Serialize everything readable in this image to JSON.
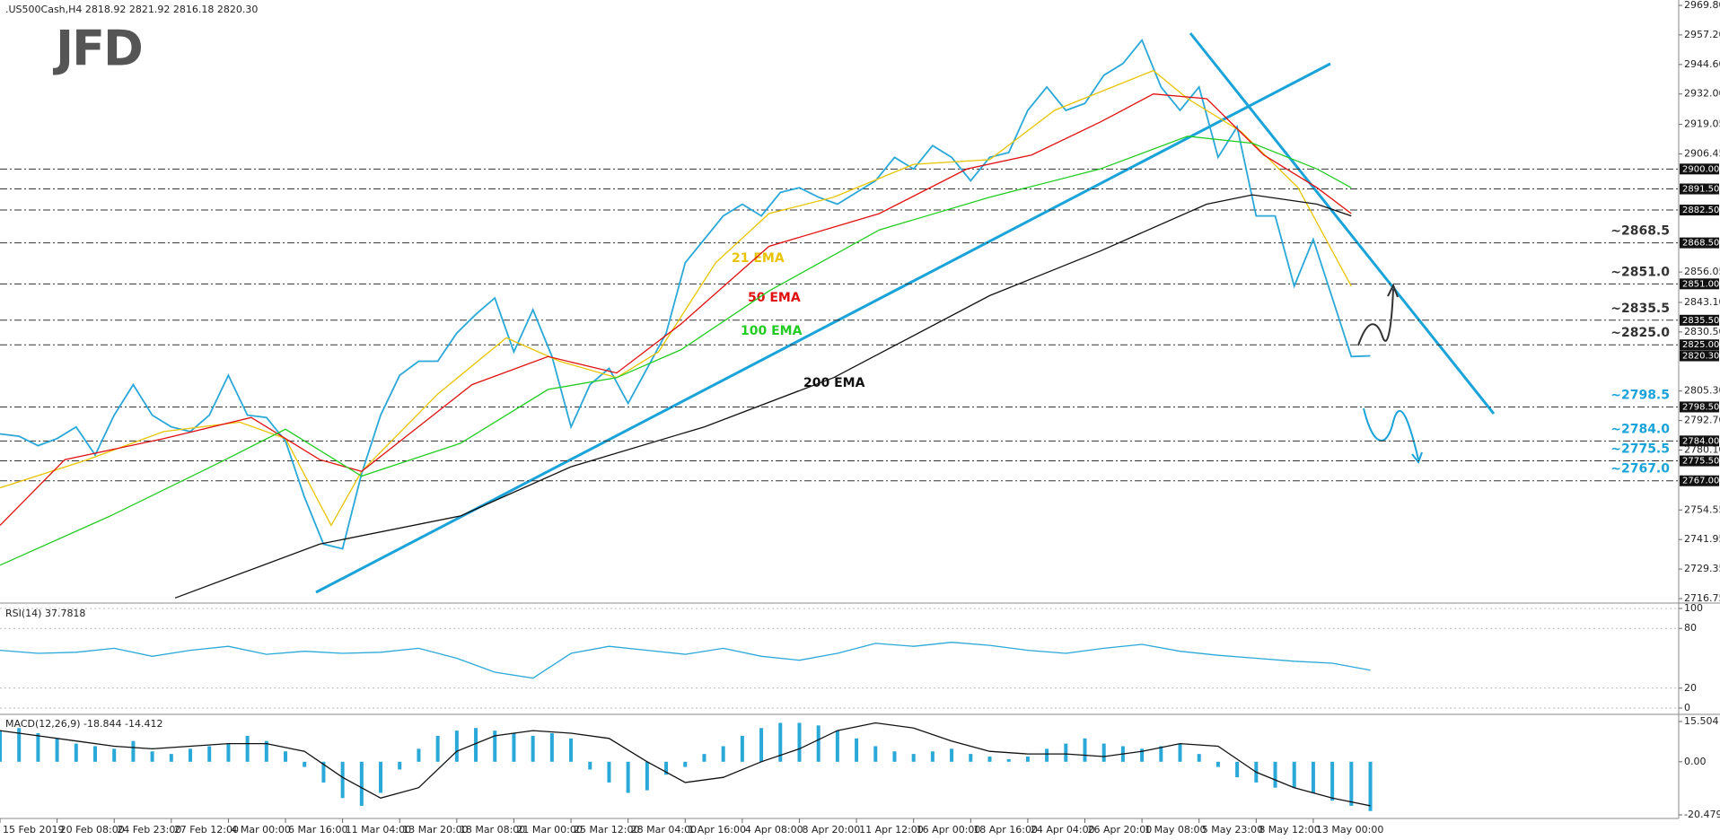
{
  "logo": "JFD",
  "chart_data": [
    {
      "type": "line",
      "title": ".US500Cash,H4  2818.92 2821.92 2816.18 2820.30",
      "xlim": [
        0,
        441
      ],
      "ylim": [
        2716.75,
        2969.8
      ],
      "yticks": [
        {
          "value": 2969.8,
          "label": "2969.80"
        },
        {
          "value": 2957.2,
          "label": "2957.20"
        },
        {
          "value": 2944.6,
          "label": "2944.60"
        },
        {
          "value": 2932,
          "label": "2932.00"
        },
        {
          "value": 2919.05,
          "label": "2919.05"
        },
        {
          "value": 2906.45,
          "label": "2906.45"
        },
        {
          "value": 2856.05,
          "label": "2856.05"
        },
        {
          "value": 2843.1,
          "label": "2843.10"
        },
        {
          "value": 2830.5,
          "label": "2830.50"
        },
        {
          "value": 2805.3,
          "label": "2805.30"
        },
        {
          "value": 2792.7,
          "label": "2792.70"
        },
        {
          "value": 2780.1,
          "label": "2780.10"
        },
        {
          "value": 2754.55,
          "label": "2754.55"
        },
        {
          "value": 2741.95,
          "label": "2741.95"
        },
        {
          "value": 2729.35,
          "label": "2729.35"
        },
        {
          "value": 2716.75,
          "label": "2716.75"
        }
      ],
      "levels": [
        {
          "value": 2900,
          "label": "2900.00"
        },
        {
          "value": 2891.5,
          "label": "2891.50"
        },
        {
          "value": 2882.5,
          "label": "2882.50"
        },
        {
          "value": 2868.5,
          "label": "2868.50",
          "annotation": "~2868.5",
          "annotation_color": "#333333"
        },
        {
          "value": 2851,
          "label": "2851.00",
          "annotation": "~2851.0",
          "annotation_color": "#333333"
        },
        {
          "value": 2835.5,
          "label": "2835.50",
          "annotation": "~2835.5",
          "annotation_color": "#333333"
        },
        {
          "value": 2825,
          "label": "2825.00",
          "annotation": "~2825.0",
          "annotation_color": "#333333"
        },
        {
          "value": 2798.5,
          "label": "2798.50",
          "annotation": "~2798.5",
          "annotation_color": "#1aa3d9"
        },
        {
          "value": 2784,
          "label": "2784.00",
          "annotation": "~2784.0",
          "annotation_color": "#1aa3d9"
        },
        {
          "value": 2775.5,
          "label": "2775.50",
          "annotation": "~2775.5",
          "annotation_color": "#1aa3d9"
        },
        {
          "value": 2767,
          "label": "2767.00",
          "annotation": "~2767.0",
          "annotation_color": "#1aa3d9"
        }
      ],
      "last_price": {
        "value": 2820.3,
        "label": "2820.30"
      },
      "series": [
        {
          "color": "#2aa8d8",
          "x": [
            0,
            5,
            10,
            15,
            20,
            25,
            30,
            35,
            40,
            45,
            50,
            55,
            60,
            65,
            70,
            75,
            80,
            85,
            90,
            95,
            100,
            105,
            110,
            115,
            120,
            125,
            130,
            135,
            140,
            145,
            150,
            155,
            160,
            165,
            170,
            175,
            180,
            185,
            190,
            195,
            200,
            205,
            210,
            215,
            220,
            225,
            230,
            235,
            240,
            245,
            250,
            255,
            260,
            265,
            270,
            275,
            280,
            285,
            290,
            295,
            300,
            305,
            310,
            315,
            320,
            325,
            330,
            335,
            340,
            345,
            350,
            355,
            360
          ],
          "values": [
            2787,
            2786,
            2782,
            2785,
            2790,
            2778,
            2795,
            2808,
            2795,
            2790,
            2788,
            2795,
            2812,
            2795,
            2794,
            2784,
            2760,
            2740,
            2738,
            2770,
            2795,
            2812,
            2818,
            2818,
            2830,
            2838,
            2845,
            2822,
            2840,
            2820,
            2790,
            2808,
            2815,
            2800,
            2815,
            2830,
            2860,
            2870,
            2880,
            2885,
            2880,
            2890,
            2892,
            2888,
            2885,
            2890,
            2895,
            2905,
            2900,
            2910,
            2905,
            2895,
            2905,
            2907,
            2925,
            2935,
            2925,
            2928,
            2940,
            2945,
            2955,
            2935,
            2925,
            2935,
            2905,
            2918,
            2880,
            2880,
            2850,
            2870,
            2845,
            2820,
            2820.3
          ]
        },
        {
          "name": "21 EMA",
          "color": "#e8c400",
          "x": [
            0,
            23,
            43,
            63,
            75,
            87,
            95,
            115,
            133,
            147,
            162,
            173,
            188,
            202,
            219,
            240,
            260,
            277,
            303,
            312,
            326,
            341,
            355
          ],
          "values": [
            2764,
            2776,
            2788,
            2792,
            2785,
            2748,
            2771,
            2804,
            2828,
            2818,
            2811,
            2822,
            2860,
            2881,
            2888,
            2902,
            2904,
            2925,
            2942,
            2930,
            2916,
            2892,
            2850
          ]
        },
        {
          "name": "50 EMA",
          "color": "#e01010",
          "x": [
            0,
            17,
            43,
            66,
            84,
            95,
            124,
            144,
            162,
            179,
            202,
            231,
            254,
            271,
            289,
            303,
            317,
            332,
            346,
            355
          ],
          "values": [
            2748,
            2776,
            2785,
            2794,
            2776,
            2771,
            2808,
            2820,
            2813,
            2834,
            2867,
            2881,
            2900,
            2906,
            2920,
            2932,
            2930,
            2906,
            2892,
            2881
          ]
        },
        {
          "name": "100 EMA",
          "color": "#22cc22",
          "x": [
            0,
            29,
            58,
            75,
            95,
            121,
            144,
            162,
            179,
            202,
            231,
            260,
            289,
            312,
            329,
            346,
            355
          ],
          "values": [
            2731,
            2752,
            2775,
            2789,
            2769,
            2783,
            2806,
            2811,
            2823,
            2848,
            2874,
            2888,
            2900,
            2914,
            2911,
            2900,
            2892
          ]
        },
        {
          "name": "200 EMA",
          "color": "#111111",
          "x": [
            46,
            84,
            121,
            150,
            185,
            219,
            260,
            289,
            317,
            329,
            346,
            355
          ],
          "values": [
            2717,
            2740,
            2752,
            2773,
            2790,
            2811,
            2846,
            2865,
            2885,
            2889,
            2885,
            2880
          ]
        }
      ]
    },
    {
      "type": "line",
      "title": "RSI(14) 37.7818",
      "xlim": [
        0,
        441
      ],
      "ylim": [
        0,
        100
      ],
      "yticks": [
        100,
        80,
        20,
        0
      ],
      "grid": true,
      "series": [
        {
          "color": "#2aa8d8",
          "x": [
            0,
            10,
            20,
            30,
            40,
            50,
            60,
            70,
            80,
            90,
            100,
            110,
            120,
            130,
            140,
            150,
            160,
            170,
            180,
            190,
            200,
            210,
            220,
            230,
            240,
            250,
            260,
            270,
            280,
            290,
            300,
            310,
            320,
            330,
            340,
            350,
            360
          ],
          "values": [
            58,
            55,
            56,
            60,
            52,
            58,
            62,
            54,
            57,
            55,
            56,
            60,
            50,
            36,
            30,
            55,
            62,
            58,
            54,
            60,
            52,
            48,
            55,
            65,
            62,
            66,
            63,
            58,
            55,
            60,
            64,
            57,
            53,
            50,
            47,
            45,
            38
          ]
        }
      ]
    },
    {
      "type": "bar",
      "title": "MACD(12,26,9) -18.844 -14.412",
      "xlim": [
        0,
        441
      ],
      "ylim": [
        -20.479,
        15.504
      ],
      "yticks": [
        15.504,
        {
          "value": 0,
          "label": "0.00"
        },
        -20.479
      ],
      "xticks": [
        {
          "value": 0,
          "label": "15 Feb 2019"
        },
        {
          "value": 15,
          "label": "20 Feb 08:00"
        },
        {
          "value": 30,
          "label": "24 Feb 23:00"
        },
        {
          "value": 45,
          "label": "27 Feb 12:00"
        },
        {
          "value": 60,
          "label": "4 Mar 00:00"
        },
        {
          "value": 75,
          "label": "6 Mar 16:00"
        },
        {
          "value": 90,
          "label": "11 Mar 04:00"
        },
        {
          "value": 105,
          "label": "13 Mar 20:00"
        },
        {
          "value": 120,
          "label": "18 Mar 08:00"
        },
        {
          "value": 135,
          "label": "21 Mar 00:00"
        },
        {
          "value": 150,
          "label": "25 Mar 12:00"
        },
        {
          "value": 165,
          "label": "28 Mar 04:00"
        },
        {
          "value": 180,
          "label": "1 Apr 16:00"
        },
        {
          "value": 195,
          "label": "4 Apr 08:00"
        },
        {
          "value": 210,
          "label": "8 Apr 20:00"
        },
        {
          "value": 225,
          "label": "11 Apr 12:00"
        },
        {
          "value": 240,
          "label": "16 Apr 00:00"
        },
        {
          "value": 255,
          "label": "18 Apr 16:00"
        },
        {
          "value": 270,
          "label": "24 Apr 04:00"
        },
        {
          "value": 285,
          "label": "26 Apr 20:00"
        },
        {
          "value": 300,
          "label": "1 May 08:00"
        },
        {
          "value": 315,
          "label": "5 May 23:00"
        },
        {
          "value": 330,
          "label": "8 May 12:00"
        },
        {
          "value": 345,
          "label": "13 May 00:00"
        }
      ],
      "series": [
        {
          "color": "#2aa8d8",
          "x": [
            0,
            5,
            10,
            15,
            20,
            25,
            30,
            35,
            40,
            45,
            50,
            55,
            60,
            65,
            70,
            75,
            80,
            85,
            90,
            95,
            100,
            105,
            110,
            115,
            120,
            125,
            130,
            135,
            140,
            145,
            150,
            155,
            160,
            165,
            170,
            175,
            180,
            185,
            190,
            195,
            200,
            205,
            210,
            215,
            220,
            225,
            230,
            235,
            240,
            245,
            250,
            255,
            260,
            265,
            270,
            275,
            280,
            285,
            290,
            295,
            300,
            305,
            310,
            315,
            320,
            325,
            330,
            335,
            340,
            345,
            350,
            355,
            360
          ],
          "values": [
            12,
            13,
            11,
            9,
            7,
            6,
            5,
            8,
            4,
            3,
            5,
            6,
            7,
            10,
            8,
            4,
            -2,
            -8,
            -14,
            -17,
            -12,
            -3,
            5,
            10,
            12,
            13,
            12,
            11,
            10,
            11,
            9,
            -3,
            -8,
            -12,
            -11,
            -5,
            -2,
            3,
            6,
            10,
            13,
            15,
            15,
            14,
            12,
            9,
            6,
            4,
            3,
            4,
            5,
            3,
            2,
            1,
            2,
            5,
            7,
            9,
            7,
            6,
            5,
            6,
            7,
            3,
            -2,
            -6,
            -8,
            -10,
            -10,
            -12,
            -15,
            -17,
            -19
          ]
        },
        {
          "type": "line",
          "color": "#111111",
          "x": [
            0,
            10,
            20,
            30,
            40,
            50,
            60,
            70,
            80,
            90,
            100,
            110,
            120,
            130,
            140,
            150,
            160,
            170,
            180,
            190,
            200,
            210,
            220,
            230,
            240,
            250,
            260,
            270,
            280,
            290,
            300,
            310,
            320,
            330,
            340,
            350,
            360
          ],
          "values": [
            12,
            10,
            8,
            6,
            5,
            6,
            7,
            7,
            4,
            -6,
            -14,
            -10,
            4,
            10,
            12,
            11,
            9,
            0,
            -8,
            -6,
            0,
            5,
            12,
            15,
            13,
            8,
            4,
            3,
            3,
            2,
            4,
            7,
            6,
            -4,
            -10,
            -14,
            -17
          ]
        }
      ]
    }
  ]
}
